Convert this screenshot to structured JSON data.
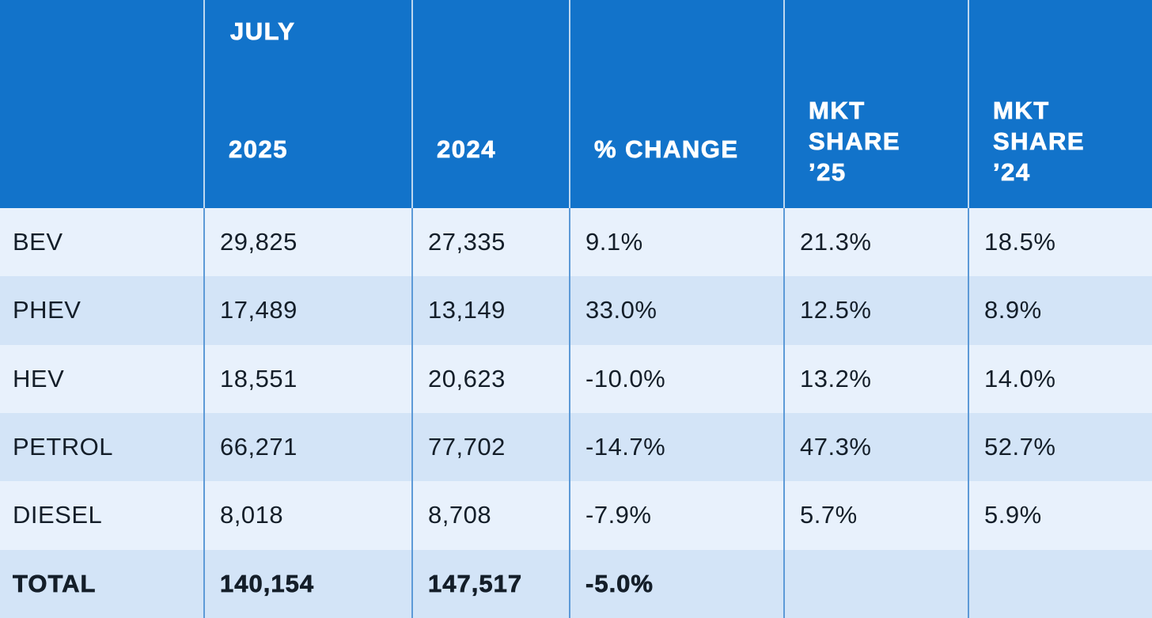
{
  "table": {
    "header": {
      "period_label": "JULY",
      "col_2025": "2025",
      "col_2024": "2024",
      "col_change": "% CHANGE",
      "col_share25": "MKT SHARE ’25",
      "col_share24": "MKT SHARE ’24"
    },
    "rows": [
      {
        "label": "BEV",
        "y2025": "29,825",
        "y2024": "27,335",
        "change": "9.1%",
        "share25": "21.3%",
        "share24": "18.5%"
      },
      {
        "label": "PHEV",
        "y2025": "17,489",
        "y2024": "13,149",
        "change": "33.0%",
        "share25": "12.5%",
        "share24": "8.9%"
      },
      {
        "label": "HEV",
        "y2025": "18,551",
        "y2024": "20,623",
        "change": "-10.0%",
        "share25": "13.2%",
        "share24": "14.0%"
      },
      {
        "label": "PETROL",
        "y2025": "66,271",
        "y2024": "77,702",
        "change": "-14.7%",
        "share25": "47.3%",
        "share24": "52.7%"
      },
      {
        "label": "DIESEL",
        "y2025": "8,018",
        "y2024": "8,708",
        "change": "-7.9%",
        "share25": "5.7%",
        "share24": "5.9%"
      },
      {
        "label": "TOTAL",
        "y2025": "140,154",
        "y2024": "147,517",
        "change": "-5.0%",
        "share25": "",
        "share24": ""
      }
    ]
  },
  "colors": {
    "header_bg": "#1273ca",
    "row_light": "#e8f1fc",
    "row_dark": "#d3e4f7",
    "divider_body": "#5d9ad7",
    "divider_header": "#bdd7ef",
    "text_dark": "#141e29",
    "text_white": "#ffffff"
  },
  "chart_data": {
    "type": "table",
    "period": "JULY",
    "columns": [
      "2025",
      "2024",
      "% CHANGE",
      "MKT SHARE ’25",
      "MKT SHARE ’24"
    ],
    "rows": [
      {
        "category": "BEV",
        "sales_2025": 29825,
        "sales_2024": 27335,
        "pct_change": 9.1,
        "mkt_share_25": 21.3,
        "mkt_share_24": 18.5
      },
      {
        "category": "PHEV",
        "sales_2025": 17489,
        "sales_2024": 13149,
        "pct_change": 33.0,
        "mkt_share_25": 12.5,
        "mkt_share_24": 8.9
      },
      {
        "category": "HEV",
        "sales_2025": 18551,
        "sales_2024": 20623,
        "pct_change": -10.0,
        "mkt_share_25": 13.2,
        "mkt_share_24": 14.0
      },
      {
        "category": "PETROL",
        "sales_2025": 66271,
        "sales_2024": 77702,
        "pct_change": -14.7,
        "mkt_share_25": 47.3,
        "mkt_share_24": 52.7
      },
      {
        "category": "DIESEL",
        "sales_2025": 8018,
        "sales_2024": 8708,
        "pct_change": -7.9,
        "mkt_share_25": 5.7,
        "mkt_share_24": 5.9
      },
      {
        "category": "TOTAL",
        "sales_2025": 140154,
        "sales_2024": 147517,
        "pct_change": -5.0,
        "mkt_share_25": null,
        "mkt_share_24": null
      }
    ]
  }
}
